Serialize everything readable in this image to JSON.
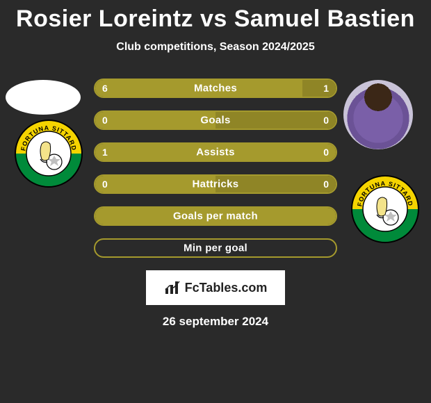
{
  "title": "Rosier Loreintz vs Samuel Bastien",
  "subtitle": "Club competitions, Season 2024/2025",
  "date": "26 september 2024",
  "brand": "FcTables.com",
  "colors": {
    "bar_border": "#a59a2d",
    "bar_fill": "#a59a2d",
    "bar_fill_alt": "#8f8526",
    "background": "#2a2a2a",
    "text": "#ffffff"
  },
  "club_badge": {
    "outer_top": "#f5d400",
    "outer_bottom": "#008a3a",
    "inner": "#ffffff",
    "ring_text_color": "#ffffff",
    "ring_font_size": 9,
    "ring_top": "FORTUNA SITTARD"
  },
  "bars": [
    {
      "label": "Matches",
      "left": "6",
      "right": "1",
      "left_pct": 86,
      "right_pct": 14
    },
    {
      "label": "Goals",
      "left": "0",
      "right": "0",
      "left_pct": 50,
      "right_pct": 50
    },
    {
      "label": "Assists",
      "left": "1",
      "right": "0",
      "left_pct": 100,
      "right_pct": 0
    },
    {
      "label": "Hattricks",
      "left": "0",
      "right": "0",
      "left_pct": 50,
      "right_pct": 50
    },
    {
      "label": "Goals per match",
      "left": "",
      "right": "",
      "left_pct": 100,
      "right_pct": 0
    },
    {
      "label": "Min per goal",
      "left": "",
      "right": "",
      "left_pct": 0,
      "right_pct": 0
    }
  ]
}
